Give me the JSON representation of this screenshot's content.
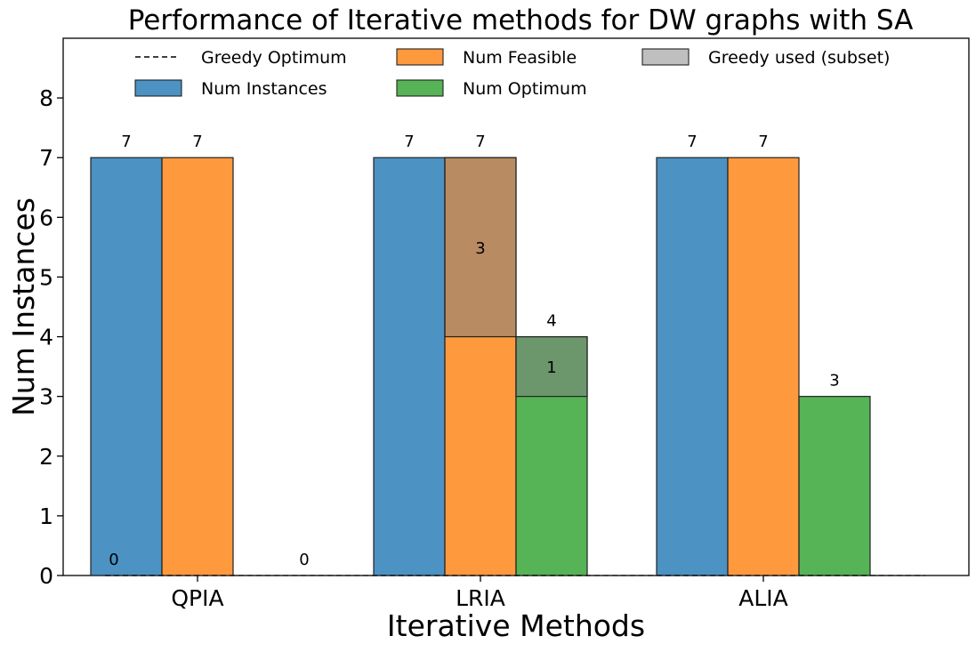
{
  "chart_data": {
    "type": "bar",
    "title": "Performance of Iterative methods for DW graphs with SA",
    "xlabel": "Iterative Methods",
    "ylabel": "Num Instances",
    "categories": [
      "QPIA",
      "LRIA",
      "ALIA"
    ],
    "ylim": [
      0,
      9
    ],
    "yticks": [
      0,
      1,
      2,
      3,
      4,
      5,
      6,
      7,
      8
    ],
    "grid": false,
    "legend_placement": "top",
    "series": [
      {
        "name": "Num Instances",
        "values": [
          7,
          7,
          7
        ],
        "color": "#1f77b4",
        "labels": [
          "7",
          "7",
          "7"
        ]
      },
      {
        "name": "Num Feasible",
        "values": [
          7,
          7,
          7
        ],
        "color": "#ff7f0e",
        "labels": [
          "7",
          "7",
          "7"
        ]
      },
      {
        "name": "Num Optimum",
        "values": [
          0,
          4,
          3
        ],
        "color": "#2ca02c",
        "labels": [
          "",
          "4",
          "3"
        ]
      }
    ],
    "greedy_used": {
      "name": "Greedy used (subset)",
      "color": "#808080",
      "segments": [
        {
          "category": "LRIA",
          "series": "Num Feasible",
          "from": 4,
          "to": 7,
          "label": "3"
        },
        {
          "category": "LRIA",
          "series": "Num Optimum",
          "from": 3,
          "to": 4,
          "label": "1"
        }
      ]
    },
    "greedy_optimum": {
      "name": "Greedy Optimum",
      "value": 0,
      "labels": [
        {
          "category": "QPIA",
          "text": "0"
        },
        {
          "category": "QPIA",
          "text": "0"
        }
      ]
    },
    "legend": [
      {
        "name": "Greedy Optimum",
        "kind": "line"
      },
      {
        "name": "Num Instances",
        "kind": "patch",
        "color": "#1f77b4"
      },
      {
        "name": "Num Feasible",
        "kind": "patch",
        "color": "#ff7f0e"
      },
      {
        "name": "Num Optimum",
        "kind": "patch",
        "color": "#2ca02c"
      },
      {
        "name": "Greedy used (subset)",
        "kind": "patch",
        "color": "#808080"
      }
    ]
  }
}
